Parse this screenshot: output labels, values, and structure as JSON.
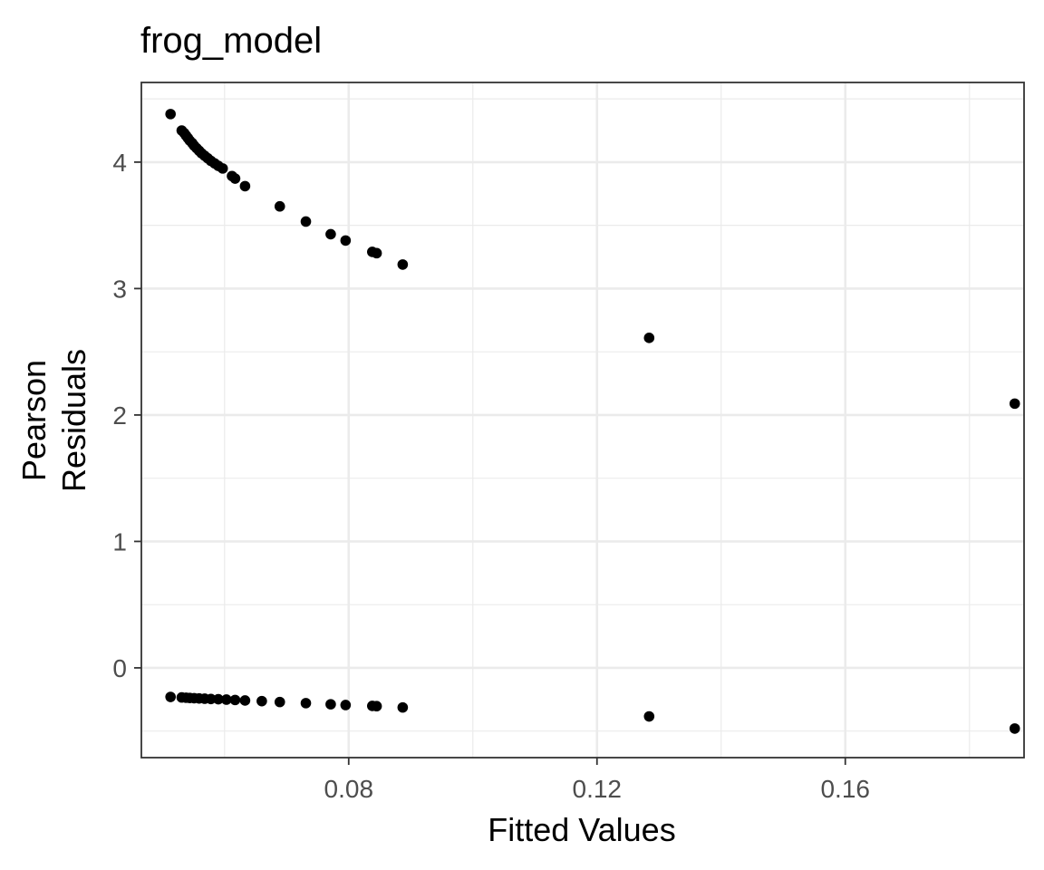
{
  "chart_data": {
    "type": "scatter",
    "title": "frog_model",
    "xlabel": "Fitted Values",
    "ylabel_lines": [
      "Pearson",
      "Residuals"
    ],
    "xlim": [
      0.0466,
      0.1888
    ],
    "ylim": [
      -0.71,
      4.63
    ],
    "x_ticks": [
      {
        "value": 0.08,
        "label": "0.08"
      },
      {
        "value": 0.12,
        "label": "0.12"
      },
      {
        "value": 0.16,
        "label": "0.16"
      }
    ],
    "x_minor_ticks": [
      0.06,
      0.1,
      0.14,
      0.18
    ],
    "y_ticks": [
      {
        "value": 0,
        "label": "0"
      },
      {
        "value": 1,
        "label": "1"
      },
      {
        "value": 2,
        "label": "2"
      },
      {
        "value": 3,
        "label": "3"
      },
      {
        "value": 4,
        "label": "4"
      }
    ],
    "y_minor_ticks": [
      -0.5,
      0.5,
      1.5,
      2.5,
      3.5,
      4.5
    ],
    "grid": true,
    "legend": "none",
    "point_color": "#000000",
    "points": [
      {
        "x": 0.0513,
        "y": 4.38
      },
      {
        "x": 0.0531,
        "y": 4.25
      },
      {
        "x": 0.0535,
        "y": 4.23
      },
      {
        "x": 0.0538,
        "y": 4.21
      },
      {
        "x": 0.0541,
        "y": 4.19
      },
      {
        "x": 0.0544,
        "y": 4.17
      },
      {
        "x": 0.0548,
        "y": 4.15
      },
      {
        "x": 0.0551,
        "y": 4.13
      },
      {
        "x": 0.0555,
        "y": 4.11
      },
      {
        "x": 0.0559,
        "y": 4.09
      },
      {
        "x": 0.0563,
        "y": 4.07
      },
      {
        "x": 0.0568,
        "y": 4.05
      },
      {
        "x": 0.0573,
        "y": 4.03
      },
      {
        "x": 0.0578,
        "y": 4.01
      },
      {
        "x": 0.0584,
        "y": 3.99
      },
      {
        "x": 0.059,
        "y": 3.97
      },
      {
        "x": 0.0597,
        "y": 3.95
      },
      {
        "x": 0.0612,
        "y": 3.89
      },
      {
        "x": 0.0617,
        "y": 3.87
      },
      {
        "x": 0.0633,
        "y": 3.81
      },
      {
        "x": 0.0689,
        "y": 3.65
      },
      {
        "x": 0.0731,
        "y": 3.53
      },
      {
        "x": 0.0771,
        "y": 3.43
      },
      {
        "x": 0.0795,
        "y": 3.38
      },
      {
        "x": 0.0838,
        "y": 3.29
      },
      {
        "x": 0.0845,
        "y": 3.28
      },
      {
        "x": 0.0887,
        "y": 3.19
      },
      {
        "x": 0.1284,
        "y": 2.61
      },
      {
        "x": 0.1873,
        "y": 2.09
      },
      {
        "x": 0.0513,
        "y": -0.23
      },
      {
        "x": 0.0531,
        "y": -0.234
      },
      {
        "x": 0.0538,
        "y": -0.236
      },
      {
        "x": 0.0544,
        "y": -0.238
      },
      {
        "x": 0.0551,
        "y": -0.24
      },
      {
        "x": 0.0559,
        "y": -0.242
      },
      {
        "x": 0.0568,
        "y": -0.244
      },
      {
        "x": 0.0578,
        "y": -0.246
      },
      {
        "x": 0.059,
        "y": -0.248
      },
      {
        "x": 0.0603,
        "y": -0.251
      },
      {
        "x": 0.0617,
        "y": -0.254
      },
      {
        "x": 0.0633,
        "y": -0.258
      },
      {
        "x": 0.066,
        "y": -0.263
      },
      {
        "x": 0.0689,
        "y": -0.27
      },
      {
        "x": 0.0731,
        "y": -0.279
      },
      {
        "x": 0.0771,
        "y": -0.288
      },
      {
        "x": 0.0795,
        "y": -0.294
      },
      {
        "x": 0.0838,
        "y": -0.301
      },
      {
        "x": 0.0845,
        "y": -0.303
      },
      {
        "x": 0.0887,
        "y": -0.313
      },
      {
        "x": 0.1284,
        "y": -0.384
      },
      {
        "x": 0.1873,
        "y": -0.48
      }
    ]
  }
}
